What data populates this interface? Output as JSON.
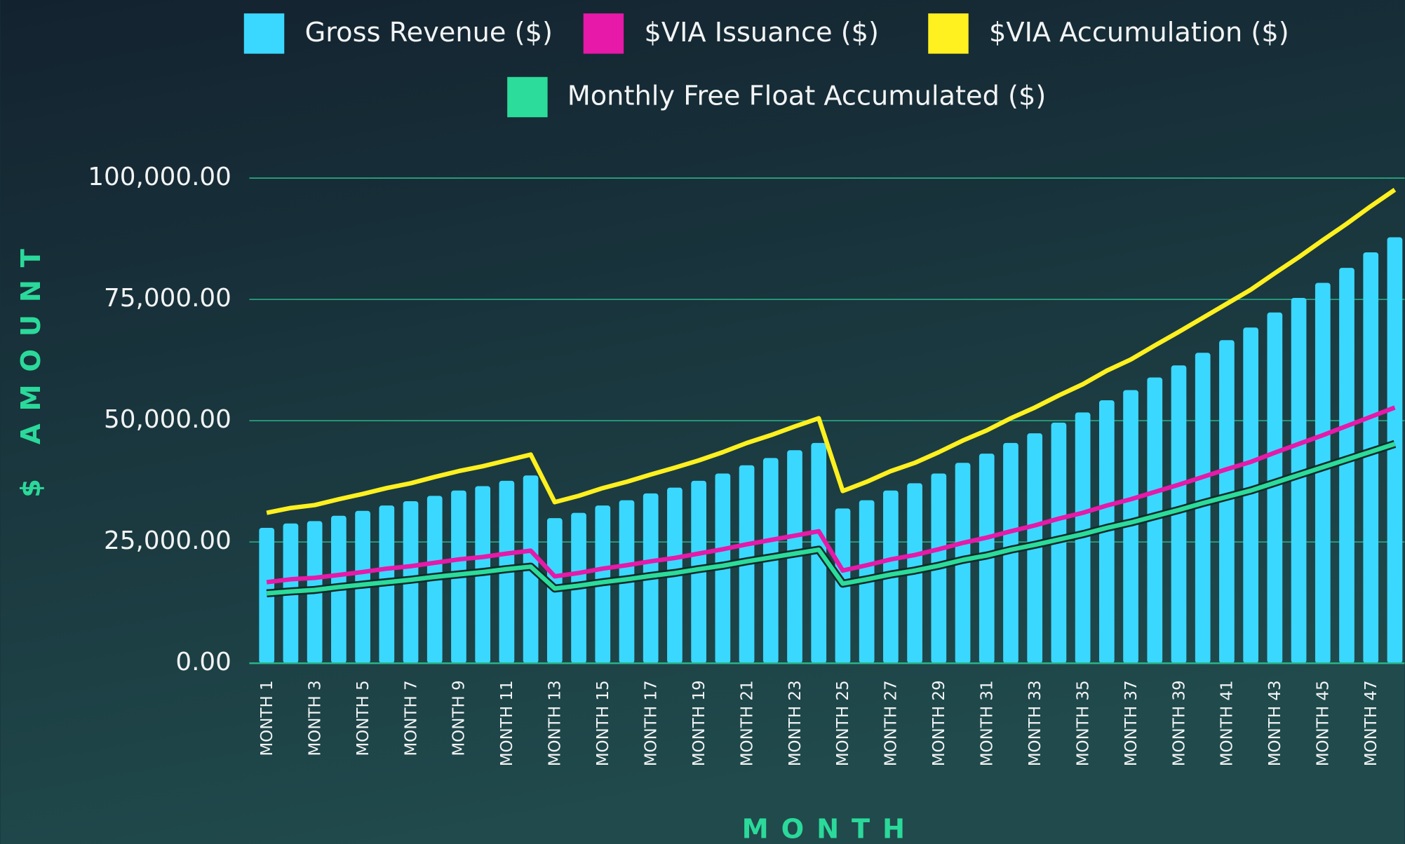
{
  "chart_data": {
    "type": "bar",
    "y_label": "$ AMOUNT",
    "x_label": "MONTH",
    "categories": [
      "MONTH 1",
      null,
      "MONTH 3",
      null,
      "MONTH 5",
      null,
      "MONTH 7",
      null,
      "MONTH 9",
      null,
      "MONTH 11",
      null,
      "MONTH 13",
      null,
      "MONTH 15",
      null,
      "MONTH 17",
      null,
      "MONTH 19",
      null,
      "MONTH 21",
      null,
      "MONTH 23",
      null,
      "MONTH 25",
      null,
      "MONTH 27",
      null,
      "MONTH 29",
      null,
      "MONTH 31",
      null,
      "MONTH 33",
      null,
      "MONTH 35",
      null,
      "MONTH 37",
      null,
      "MONTH 39",
      null,
      "MONTH 41",
      null,
      "MONTH 43",
      null,
      "MONTH 45",
      null,
      "MONTH 47",
      null
    ],
    "series": [
      {
        "name": "Gross Revenue ($)",
        "type": "bar",
        "color": "#3ad8ff",
        "values": [
          27900,
          28800,
          29300,
          30400,
          31400,
          32500,
          33400,
          34500,
          35600,
          36500,
          37600,
          38700,
          29900,
          31000,
          32500,
          33600,
          35000,
          36200,
          37600,
          39100,
          40800,
          42300,
          43900,
          45400,
          31900,
          33600,
          35600,
          37100,
          39100,
          41300,
          43200,
          45400,
          47400,
          49600,
          51700,
          54200,
          56300,
          58900,
          61400,
          64000,
          66600,
          69200,
          72300,
          75300,
          78400,
          81500,
          84700,
          87800
        ]
      },
      {
        "name": "$VIA Issuance ($)",
        "type": "line",
        "color": "#e619a8",
        "values": [
          16700,
          17300,
          17600,
          18200,
          18800,
          19500,
          20000,
          20700,
          21400,
          21900,
          22600,
          23200,
          17900,
          18600,
          19500,
          20200,
          21000,
          21700,
          22600,
          23500,
          24500,
          25400,
          26300,
          27200,
          19100,
          20200,
          21400,
          22300,
          23500,
          24800,
          25900,
          27200,
          28400,
          29800,
          31000,
          32500,
          33800,
          35300,
          36800,
          38400,
          40000,
          41500,
          43400,
          45200,
          47000,
          48900,
          50800,
          52700
        ]
      },
      {
        "name": "$VIA Accumulation ($)",
        "type": "line",
        "color": "#fff01f",
        "values": [
          31000,
          32000,
          32600,
          33800,
          34900,
          36100,
          37100,
          38400,
          39600,
          40600,
          41800,
          43000,
          33200,
          34500,
          36100,
          37400,
          38900,
          40300,
          41800,
          43500,
          45400,
          47000,
          48800,
          50500,
          35500,
          37400,
          39600,
          41300,
          43500,
          45900,
          48000,
          50500,
          52700,
          55200,
          57500,
          60300,
          62600,
          65500,
          68300,
          71200,
          74100,
          77000,
          80400,
          83700,
          87200,
          90600,
          94200,
          97600
        ]
      },
      {
        "name": "Monthly Free Float Accumulated ($)",
        "type": "line",
        "color": "#2bdc9a",
        "values": [
          14400,
          14800,
          15100,
          15700,
          16200,
          16700,
          17200,
          17800,
          18300,
          18800,
          19400,
          19900,
          15400,
          16000,
          16700,
          17300,
          18000,
          18600,
          19400,
          20100,
          21000,
          21800,
          22600,
          23400,
          16400,
          17300,
          18300,
          19100,
          20100,
          21300,
          22200,
          23400,
          24400,
          25500,
          26600,
          27900,
          29000,
          30300,
          31600,
          33000,
          34300,
          35600,
          37200,
          38800,
          40400,
          42000,
          43600,
          45200
        ]
      }
    ],
    "ylim": [
      0,
      100000
    ],
    "yticks": [
      {
        "value": 0,
        "label": "0.00"
      },
      {
        "value": 25000,
        "label": "25,000.00"
      },
      {
        "value": 50000,
        "label": "50,000.00"
      },
      {
        "value": 75000,
        "label": "75,000.00"
      },
      {
        "value": 100000,
        "label": "100,000.00"
      }
    ],
    "grid": true,
    "grid_color": "#2bb38a",
    "legend": "top"
  }
}
